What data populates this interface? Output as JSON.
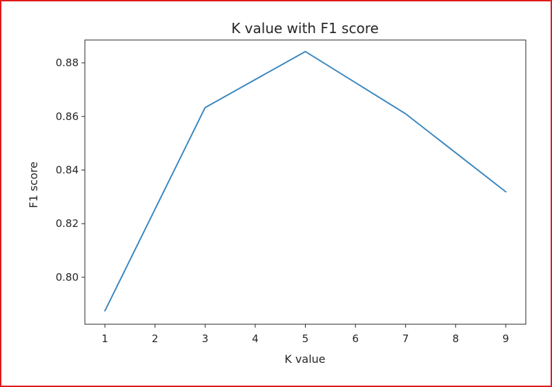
{
  "chart_data": {
    "type": "line",
    "title": "K value with F1 score",
    "xlabel": "K value",
    "ylabel": "F1 score",
    "x": [
      1,
      3,
      5,
      7,
      9
    ],
    "series": [
      {
        "values": [
          0.7875,
          0.8633,
          0.8842,
          0.861,
          0.8319
        ],
        "color": "#3a87c0"
      }
    ],
    "xlim": [
      0.6,
      9.4
    ],
    "ylim": [
      0.7825,
      0.8885
    ],
    "xticks": [
      1,
      2,
      3,
      4,
      5,
      6,
      7,
      8,
      9
    ],
    "xtick_labels": [
      "1",
      "2",
      "3",
      "4",
      "5",
      "6",
      "7",
      "8",
      "9"
    ],
    "yticks": [
      0.8,
      0.82,
      0.84,
      0.86,
      0.88
    ],
    "ytick_labels": [
      "0.80",
      "0.82",
      "0.84",
      "0.86",
      "0.88"
    ],
    "grid": false,
    "legend": "none"
  },
  "colors": {
    "frame_border": "#e0191b",
    "axes": "#262626",
    "line": "#3a87c0"
  }
}
